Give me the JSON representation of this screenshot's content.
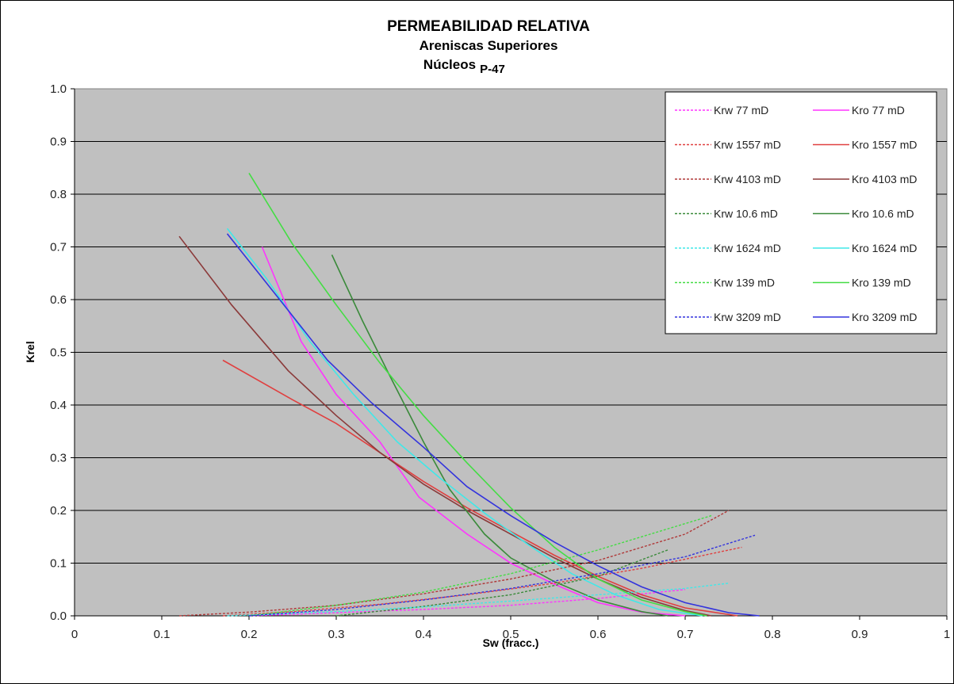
{
  "chart_data": {
    "type": "line",
    "title_lines": [
      "PERMEABILIDAD RELATIVA",
      "Areniscas Superiores",
      "Núcleos"
    ],
    "title_well": "P-47",
    "xlabel": "Sw (fracc.)",
    "ylabel": "Krel",
    "xlim": [
      0,
      1
    ],
    "ylim": [
      0,
      1
    ],
    "x_ticks": [
      "0",
      "0.1",
      "0.2",
      "0.3",
      "0.4",
      "0.5",
      "0.6",
      "0.7",
      "0.8",
      "0.9",
      "1"
    ],
    "y_ticks": [
      "0.0",
      "0.1",
      "0.2",
      "0.3",
      "0.4",
      "0.5",
      "0.6",
      "0.7",
      "0.8",
      "0.9",
      "1.0"
    ],
    "grid": "horizontal",
    "plot_background": "#c0c0c0",
    "legend_position": "top-right",
    "series": [
      {
        "name": "Krw 77 mD",
        "color": "#ff33ff",
        "dash": true,
        "points": [
          [
            0.2,
            0.0
          ],
          [
            0.3,
            0.006
          ],
          [
            0.4,
            0.012
          ],
          [
            0.5,
            0.02
          ],
          [
            0.6,
            0.033
          ],
          [
            0.7,
            0.05
          ]
        ]
      },
      {
        "name": "Kro 77 mD",
        "color": "#ff33ff",
        "dash": false,
        "points": [
          [
            0.215,
            0.7
          ],
          [
            0.26,
            0.52
          ],
          [
            0.3,
            0.42
          ],
          [
            0.35,
            0.33
          ],
          [
            0.395,
            0.225
          ],
          [
            0.45,
            0.155
          ],
          [
            0.5,
            0.1
          ],
          [
            0.55,
            0.06
          ],
          [
            0.6,
            0.025
          ],
          [
            0.65,
            0.007
          ],
          [
            0.7,
            0.0
          ]
        ]
      },
      {
        "name": "Krw 1557 mD",
        "color": "#e04040",
        "dash": true,
        "points": [
          [
            0.17,
            0.0
          ],
          [
            0.25,
            0.008
          ],
          [
            0.35,
            0.022
          ],
          [
            0.45,
            0.04
          ],
          [
            0.55,
            0.062
          ],
          [
            0.65,
            0.09
          ],
          [
            0.765,
            0.13
          ]
        ]
      },
      {
        "name": "Kro 1557 mD",
        "color": "#e04040",
        "dash": false,
        "points": [
          [
            0.17,
            0.485
          ],
          [
            0.25,
            0.41
          ],
          [
            0.3,
            0.365
          ],
          [
            0.35,
            0.31
          ],
          [
            0.4,
            0.255
          ],
          [
            0.45,
            0.205
          ],
          [
            0.5,
            0.16
          ],
          [
            0.55,
            0.115
          ],
          [
            0.6,
            0.075
          ],
          [
            0.65,
            0.04
          ],
          [
            0.7,
            0.015
          ],
          [
            0.76,
            0.0
          ]
        ]
      },
      {
        "name": "Krw 4103 mD",
        "color": "#b03a3a",
        "dash": true,
        "points": [
          [
            0.12,
            0.0
          ],
          [
            0.2,
            0.007
          ],
          [
            0.3,
            0.02
          ],
          [
            0.4,
            0.042
          ],
          [
            0.5,
            0.07
          ],
          [
            0.6,
            0.105
          ],
          [
            0.7,
            0.155
          ],
          [
            0.75,
            0.2
          ]
        ]
      },
      {
        "name": "Kro 4103 mD",
        "color": "#8b3a3a",
        "dash": false,
        "points": [
          [
            0.12,
            0.72
          ],
          [
            0.18,
            0.59
          ],
          [
            0.245,
            0.465
          ],
          [
            0.3,
            0.38
          ],
          [
            0.35,
            0.31
          ],
          [
            0.4,
            0.25
          ],
          [
            0.45,
            0.2
          ],
          [
            0.5,
            0.155
          ],
          [
            0.55,
            0.11
          ],
          [
            0.6,
            0.07
          ],
          [
            0.65,
            0.035
          ],
          [
            0.7,
            0.01
          ],
          [
            0.73,
            0.0
          ]
        ]
      },
      {
        "name": "Krw 10.6 mD",
        "color": "#3a8a3a",
        "dash": true,
        "points": [
          [
            0.3,
            0.0
          ],
          [
            0.4,
            0.018
          ],
          [
            0.5,
            0.04
          ],
          [
            0.6,
            0.075
          ],
          [
            0.68,
            0.125
          ]
        ]
      },
      {
        "name": "Kro 10.6 mD",
        "color": "#3a8a3a",
        "dash": false,
        "points": [
          [
            0.295,
            0.685
          ],
          [
            0.33,
            0.56
          ],
          [
            0.36,
            0.46
          ],
          [
            0.4,
            0.33
          ],
          [
            0.43,
            0.24
          ],
          [
            0.47,
            0.155
          ],
          [
            0.5,
            0.11
          ],
          [
            0.55,
            0.065
          ],
          [
            0.6,
            0.03
          ],
          [
            0.65,
            0.008
          ],
          [
            0.68,
            0.0
          ]
        ]
      },
      {
        "name": "Krw 1624 mD",
        "color": "#40e8e8",
        "dash": true,
        "points": [
          [
            0.175,
            0.0
          ],
          [
            0.3,
            0.008
          ],
          [
            0.4,
            0.017
          ],
          [
            0.5,
            0.028
          ],
          [
            0.6,
            0.04
          ],
          [
            0.7,
            0.052
          ],
          [
            0.75,
            0.062
          ]
        ]
      },
      {
        "name": "Kro 1624 mD",
        "color": "#40e8e8",
        "dash": false,
        "points": [
          [
            0.175,
            0.735
          ],
          [
            0.22,
            0.64
          ],
          [
            0.27,
            0.52
          ],
          [
            0.32,
            0.42
          ],
          [
            0.37,
            0.33
          ],
          [
            0.42,
            0.26
          ],
          [
            0.47,
            0.195
          ],
          [
            0.52,
            0.135
          ],
          [
            0.57,
            0.08
          ],
          [
            0.62,
            0.04
          ],
          [
            0.67,
            0.012
          ],
          [
            0.72,
            0.0
          ]
        ]
      },
      {
        "name": "Krw 139 mD",
        "color": "#44dd44",
        "dash": true,
        "points": [
          [
            0.2,
            0.0
          ],
          [
            0.3,
            0.02
          ],
          [
            0.4,
            0.045
          ],
          [
            0.5,
            0.08
          ],
          [
            0.6,
            0.125
          ],
          [
            0.7,
            0.175
          ],
          [
            0.73,
            0.19
          ]
        ]
      },
      {
        "name": "Kro 139 mD",
        "color": "#44dd44",
        "dash": false,
        "points": [
          [
            0.2,
            0.84
          ],
          [
            0.25,
            0.705
          ],
          [
            0.3,
            0.59
          ],
          [
            0.35,
            0.48
          ],
          [
            0.4,
            0.38
          ],
          [
            0.45,
            0.29
          ],
          [
            0.5,
            0.205
          ],
          [
            0.55,
            0.13
          ],
          [
            0.6,
            0.07
          ],
          [
            0.65,
            0.03
          ],
          [
            0.7,
            0.008
          ],
          [
            0.725,
            0.0
          ]
        ]
      },
      {
        "name": "Krw 3209 mD",
        "color": "#3333dd",
        "dash": true,
        "points": [
          [
            0.2,
            0.0
          ],
          [
            0.3,
            0.012
          ],
          [
            0.4,
            0.03
          ],
          [
            0.5,
            0.052
          ],
          [
            0.6,
            0.08
          ],
          [
            0.7,
            0.112
          ],
          [
            0.78,
            0.153
          ]
        ]
      },
      {
        "name": "Kro 3209 mD",
        "color": "#3333dd",
        "dash": false,
        "points": [
          [
            0.175,
            0.725
          ],
          [
            0.24,
            0.59
          ],
          [
            0.29,
            0.485
          ],
          [
            0.34,
            0.405
          ],
          [
            0.4,
            0.32
          ],
          [
            0.45,
            0.245
          ],
          [
            0.5,
            0.19
          ],
          [
            0.55,
            0.14
          ],
          [
            0.6,
            0.095
          ],
          [
            0.65,
            0.055
          ],
          [
            0.7,
            0.025
          ],
          [
            0.75,
            0.006
          ],
          [
            0.785,
            0.0
          ]
        ]
      }
    ]
  }
}
